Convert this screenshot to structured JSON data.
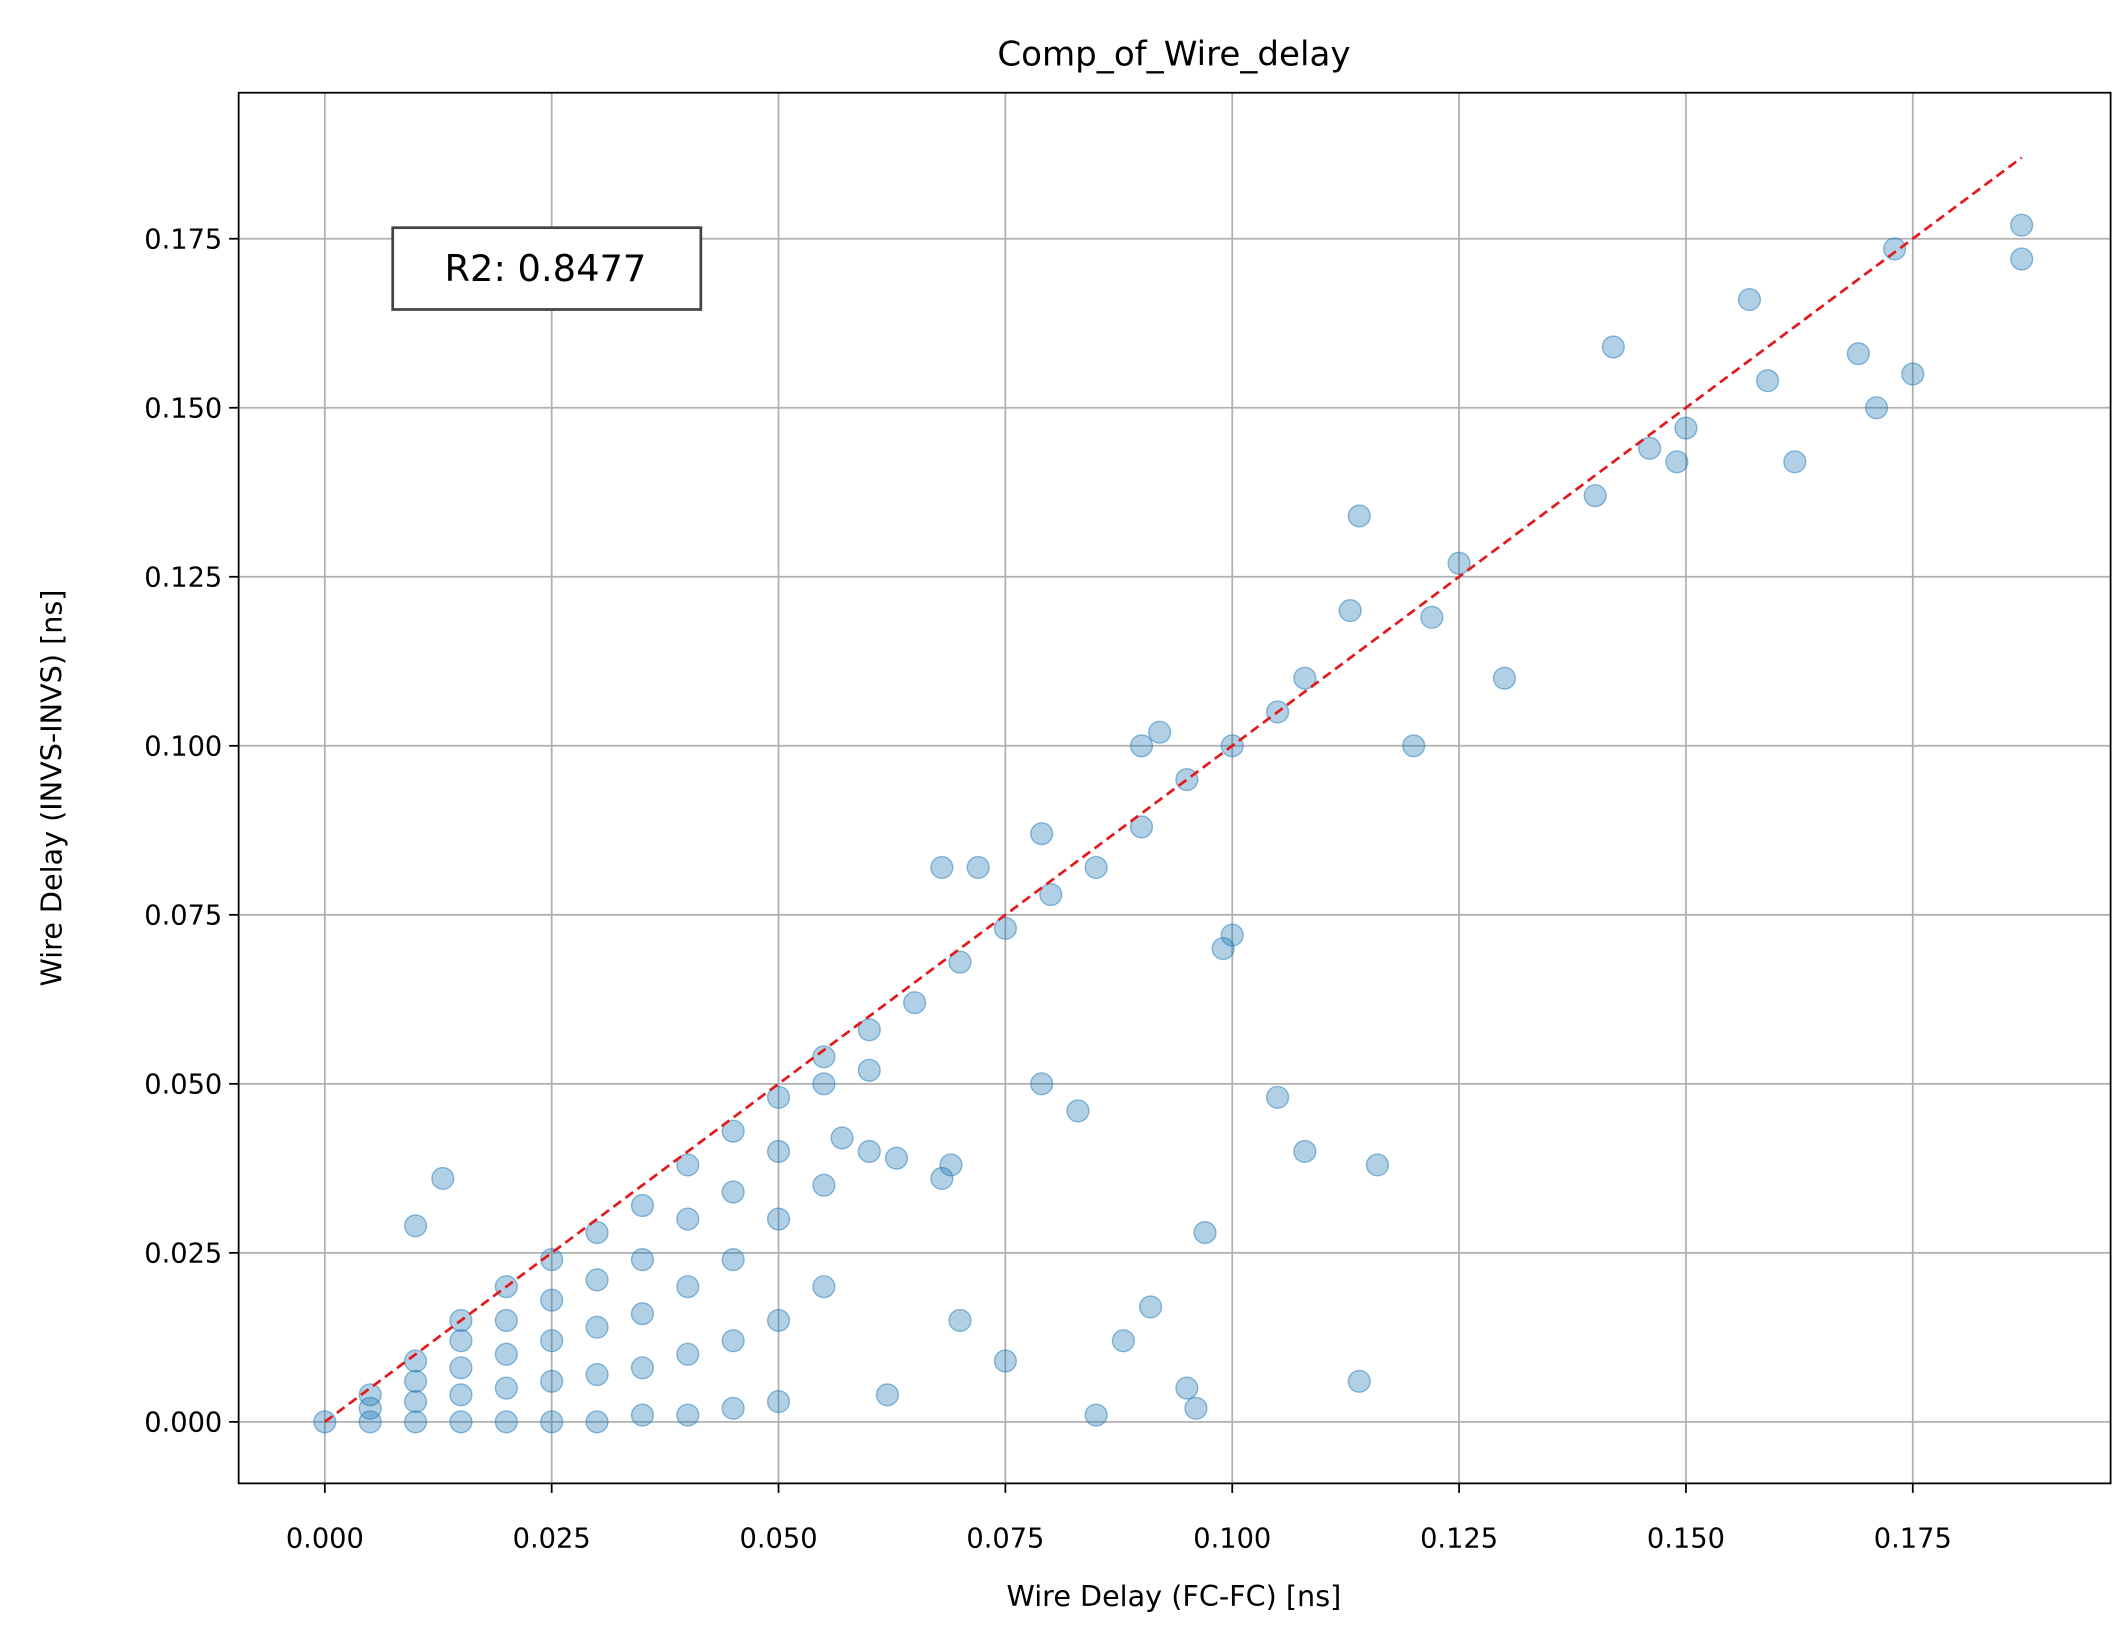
{
  "chart_data": {
    "type": "scatter",
    "title": "Comp_of_Wire_delay",
    "xlabel": "Wire Delay (FC-FC) [ns]",
    "ylabel": "Wire Delay (INVS-INVS) [ns]",
    "annotation": "R2: 0.8477",
    "color": "#1f77b4",
    "grid": true,
    "xlim": [
      -0.0095,
      0.1968
    ],
    "ylim": [
      -0.0091,
      0.1966
    ],
    "xticks": [
      {
        "value": 0,
        "label": "0.000"
      },
      {
        "value": 0.025,
        "label": "0.025"
      },
      {
        "value": 0.05,
        "label": "0.050"
      },
      {
        "value": 0.075,
        "label": "0.075"
      },
      {
        "value": 0.1,
        "label": "0.100"
      },
      {
        "value": 0.125,
        "label": "0.125"
      },
      {
        "value": 0.15,
        "label": "0.150"
      },
      {
        "value": 0.175,
        "label": "0.175"
      }
    ],
    "yticks": [
      {
        "value": 0,
        "label": "0.000"
      },
      {
        "value": 0.025,
        "label": "0.025"
      },
      {
        "value": 0.05,
        "label": "0.050"
      },
      {
        "value": 0.075,
        "label": "0.075"
      },
      {
        "value": 0.1,
        "label": "0.100"
      },
      {
        "value": 0.125,
        "label": "0.125"
      },
      {
        "value": 0.15,
        "label": "0.150"
      },
      {
        "value": 0.175,
        "label": "0.175"
      }
    ],
    "reference_line": {
      "x": [
        0,
        0.187
      ],
      "y": [
        0,
        0.187
      ],
      "color": "#e31a1c"
    },
    "x": [
      0,
      0.005,
      0.005,
      0.005,
      0.01,
      0.01,
      0.01,
      0.01,
      0.015,
      0.015,
      0.015,
      0.015,
      0.015,
      0.02,
      0.02,
      0.02,
      0.02,
      0.02,
      0.025,
      0.025,
      0.025,
      0.025,
      0.025,
      0.03,
      0.03,
      0.03,
      0.03,
      0.03,
      0.035,
      0.035,
      0.035,
      0.035,
      0.035,
      0.04,
      0.04,
      0.04,
      0.04,
      0.04,
      0.045,
      0.045,
      0.045,
      0.045,
      0.045,
      0.05,
      0.05,
      0.05,
      0.05,
      0.05,
      0.055,
      0.055,
      0.055,
      0.055,
      0.06,
      0.06,
      0.06,
      0.065,
      0.07,
      0.075,
      0.08,
      0.085,
      0.09,
      0.095,
      0.1,
      0.068,
      0.072,
      0.079,
      0.09,
      0.092,
      0.173,
      0.187,
      0.187,
      0.159,
      0.146,
      0.149,
      0.12,
      0.1,
      0.099,
      0.105,
      0.108,
      0.116,
      0.114,
      0.083,
      0.079,
      0.097,
      0.091,
      0.142,
      0.157,
      0.175,
      0.171,
      0.162,
      0.114,
      0.125,
      0.13,
      0.14,
      0.15,
      0.169,
      0.013,
      0.01,
      0.069,
      0.068,
      0.063,
      0.057,
      0.07,
      0.075,
      0.088,
      0.095,
      0.096,
      0.085,
      0.062,
      0.108,
      0.113,
      0.105,
      0.122
    ],
    "values": [
      0,
      0,
      0.002,
      0.004,
      0,
      0.003,
      0.006,
      0.009,
      0,
      0.004,
      0.008,
      0.012,
      0.015,
      0,
      0.005,
      0.01,
      0.015,
      0.02,
      0,
      0.006,
      0.012,
      0.018,
      0.024,
      0,
      0.007,
      0.014,
      0.021,
      0.028,
      0.001,
      0.008,
      0.016,
      0.024,
      0.032,
      0.001,
      0.01,
      0.02,
      0.03,
      0.038,
      0.002,
      0.012,
      0.024,
      0.034,
      0.043,
      0.003,
      0.015,
      0.03,
      0.04,
      0.048,
      0.02,
      0.035,
      0.05,
      0.054,
      0.04,
      0.052,
      0.058,
      0.062,
      0.068,
      0.073,
      0.078,
      0.082,
      0.088,
      0.095,
      0.1,
      0.082,
      0.082,
      0.087,
      0.1,
      0.102,
      0.1735,
      0.177,
      0.172,
      0.154,
      0.144,
      0.142,
      0.1,
      0.072,
      0.07,
      0.048,
      0.04,
      0.038,
      0.006,
      0.046,
      0.05,
      0.028,
      0.017,
      0.159,
      0.166,
      0.155,
      0.15,
      0.142,
      0.134,
      0.127,
      0.11,
      0.137,
      0.147,
      0.158,
      0.036,
      0.029,
      0.038,
      0.036,
      0.039,
      0.042,
      0.015,
      0.009,
      0.012,
      0.005,
      0.002,
      0.001,
      0.004,
      0.11,
      0.12,
      0.105,
      0.119
    ]
  }
}
